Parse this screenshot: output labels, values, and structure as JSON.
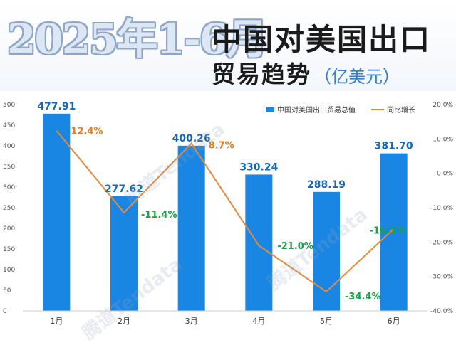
{
  "header": {
    "year_title": "2025年1-6月",
    "main_title": "中国对美国出口",
    "subtitle": "贸易趋势",
    "unit": "（亿美元）"
  },
  "watermark": "腾道Tendata",
  "colors": {
    "bar": "#1a86e3",
    "line": "#e58a3a",
    "positive": "#e07b1f",
    "negative": "#1aa14a"
  },
  "chart_data": {
    "type": "bar",
    "categories": [
      "1月",
      "2月",
      "3月",
      "4月",
      "5月",
      "6月"
    ],
    "series": [
      {
        "name": "中国对美国出口贸易总值",
        "type": "bar",
        "axis": "left",
        "values": [
          477.91,
          277.62,
          400.26,
          330.24,
          288.19,
          381.7
        ],
        "labels": [
          "477.91",
          "277.62",
          "400.26",
          "330.24",
          "288.19",
          "381.70"
        ]
      },
      {
        "name": "同比增长",
        "type": "line",
        "axis": "right",
        "values": [
          12.4,
          -11.4,
          8.7,
          -21.0,
          -34.4,
          -16.1
        ],
        "labels": [
          "12.4%",
          "-11.4%",
          "8.7%",
          "-21.0%",
          "-34.4%",
          "-16.1%"
        ]
      }
    ],
    "left_axis": {
      "ylim": [
        0,
        500
      ],
      "ticks": [
        "0",
        "50",
        "100",
        "150",
        "200",
        "250",
        "300",
        "350",
        "400",
        "450",
        "500"
      ]
    },
    "right_axis": {
      "ylim": [
        -40,
        20
      ],
      "ticks": [
        "20.0%",
        "10.0%",
        "0.0%",
        "-10.0%",
        "-20.0%",
        "-30.0%",
        "-40.0%"
      ]
    },
    "legend": [
      "中国对美国出口贸易总值",
      "同比增长"
    ],
    "legend_position": "top-right",
    "grid": false
  }
}
